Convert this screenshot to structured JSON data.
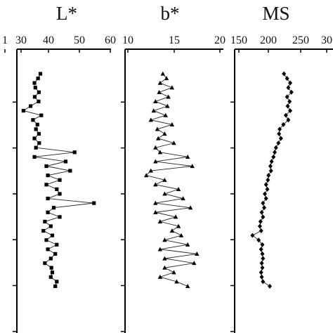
{
  "chart_data": [
    {
      "type": "line",
      "title": "L*",
      "xlabel": "",
      "ylabel": "",
      "x_ticks": [
        "1",
        "30",
        "40",
        "50",
        "60"
      ],
      "xlim": [
        30,
        60
      ],
      "grid": false,
      "marker": "square",
      "series": [
        {
          "points": [
            [
              36.5,
              1.0
            ],
            [
              35.7,
              1.5
            ],
            [
              34.5,
              2.0
            ],
            [
              34.8,
              2.5
            ],
            [
              36.0,
              3.0
            ],
            [
              34.6,
              3.5
            ],
            [
              35.9,
              4.0
            ],
            [
              33.2,
              4.5
            ],
            [
              30.8,
              5.0
            ],
            [
              36.8,
              5.5
            ],
            [
              34.0,
              6.0
            ],
            [
              35.5,
              6.5
            ],
            [
              35.0,
              7.0
            ],
            [
              36.0,
              7.5
            ],
            [
              34.5,
              8.0
            ],
            [
              36.1,
              8.5
            ],
            [
              35.0,
              9.0
            ],
            [
              48.0,
              9.5
            ],
            [
              34.5,
              10.0
            ],
            [
              45.0,
              10.5
            ],
            [
              38.5,
              11.0
            ],
            [
              46.5,
              11.5
            ],
            [
              39.0,
              12.0
            ],
            [
              43.0,
              12.5
            ],
            [
              38.5,
              13.0
            ],
            [
              42.0,
              13.5
            ],
            [
              43.0,
              14.0
            ],
            [
              39.0,
              14.5
            ],
            [
              54.5,
              15.0
            ],
            [
              41.0,
              15.5
            ],
            [
              39.0,
              16.0
            ],
            [
              43.0,
              16.5
            ],
            [
              38.0,
              17.0
            ],
            [
              40.0,
              17.5
            ],
            [
              37.5,
              18.0
            ],
            [
              40.5,
              18.5
            ],
            [
              38.5,
              19.0
            ],
            [
              42.0,
              19.5
            ],
            [
              39.0,
              20.0
            ],
            [
              41.5,
              20.5
            ],
            [
              40.0,
              21.0
            ],
            [
              38.0,
              21.5
            ],
            [
              40.2,
              22.0
            ],
            [
              40.5,
              22.5
            ],
            [
              40.0,
              23.0
            ],
            [
              42.0,
              23.5
            ],
            [
              41.5,
              24.0
            ]
          ]
        }
      ]
    },
    {
      "type": "line",
      "title": "b*",
      "xlabel": "",
      "ylabel": "",
      "x_ticks": [
        "10",
        "15",
        "20"
      ],
      "xlim": [
        10,
        20
      ],
      "grid": false,
      "marker": "triangle",
      "series": [
        {
          "points": [
            [
              13.8,
              1.0
            ],
            [
              14.2,
              1.5
            ],
            [
              13.5,
              2.0
            ],
            [
              14.8,
              2.5
            ],
            [
              13.4,
              3.0
            ],
            [
              14.4,
              3.5
            ],
            [
              13.0,
              4.0
            ],
            [
              14.3,
              4.5
            ],
            [
              12.8,
              5.0
            ],
            [
              14.1,
              5.5
            ],
            [
              12.5,
              6.0
            ],
            [
              14.8,
              6.5
            ],
            [
              13.2,
              7.0
            ],
            [
              14.0,
              7.5
            ],
            [
              13.3,
              8.0
            ],
            [
              15.0,
              8.5
            ],
            [
              13.0,
              9.0
            ],
            [
              13.5,
              9.5
            ],
            [
              16.5,
              10.0
            ],
            [
              13.0,
              10.5
            ],
            [
              17.0,
              11.0
            ],
            [
              12.5,
              11.5
            ],
            [
              12.0,
              12.0
            ],
            [
              14.0,
              12.5
            ],
            [
              13.0,
              13.0
            ],
            [
              15.5,
              13.5
            ],
            [
              14.0,
              14.0
            ],
            [
              16.0,
              14.5
            ],
            [
              13.0,
              15.0
            ],
            [
              16.8,
              15.5
            ],
            [
              13.0,
              16.0
            ],
            [
              15.2,
              16.5
            ],
            [
              13.5,
              17.0
            ],
            [
              15.5,
              17.5
            ],
            [
              14.8,
              18.0
            ],
            [
              15.8,
              18.5
            ],
            [
              14.0,
              19.0
            ],
            [
              16.5,
              19.5
            ],
            [
              13.5,
              20.0
            ],
            [
              17.5,
              20.5
            ],
            [
              14.0,
              21.0
            ],
            [
              17.2,
              21.5
            ],
            [
              14.0,
              22.0
            ],
            [
              15.0,
              22.5
            ],
            [
              13.5,
              23.0
            ],
            [
              15.3,
              23.5
            ],
            [
              16.5,
              24.0
            ]
          ]
        }
      ]
    },
    {
      "type": "line",
      "title": "MS",
      "xlabel": "",
      "ylabel": "",
      "x_ticks": [
        "150",
        "200",
        "250",
        "30"
      ],
      "xlim": [
        150,
        300
      ],
      "grid": false,
      "marker": "diamond",
      "series": [
        {
          "points": [
            [
              223,
              1.0
            ],
            [
              228,
              1.5
            ],
            [
              233,
              2.0
            ],
            [
              230,
              2.5
            ],
            [
              235,
              3.0
            ],
            [
              228,
              3.5
            ],
            [
              232,
              4.0
            ],
            [
              229,
              4.5
            ],
            [
              233,
              5.0
            ],
            [
              226,
              5.5
            ],
            [
              230,
              6.0
            ],
            [
              222,
              6.5
            ],
            [
              216,
              7.0
            ],
            [
              215,
              7.5
            ],
            [
              218,
              8.0
            ],
            [
              214,
              8.5
            ],
            [
              210,
              9.0
            ],
            [
              208,
              9.5
            ],
            [
              206,
              10.0
            ],
            [
              203,
              10.5
            ],
            [
              201,
              11.0
            ],
            [
              202,
              11.5
            ],
            [
              198,
              12.0
            ],
            [
              197,
              12.5
            ],
            [
              194,
              13.0
            ],
            [
              196,
              13.5
            ],
            [
              192,
              14.0
            ],
            [
              194,
              14.5
            ],
            [
              189,
              15.0
            ],
            [
              191,
              15.5
            ],
            [
              187,
              16.0
            ],
            [
              189,
              16.5
            ],
            [
              185,
              17.0
            ],
            [
              184,
              17.5
            ],
            [
              186,
              18.0
            ],
            [
              172,
              18.5
            ],
            [
              182,
              19.0
            ],
            [
              188,
              19.5
            ],
            [
              186,
              20.0
            ],
            [
              188,
              20.5
            ],
            [
              189,
              21.0
            ],
            [
              187,
              21.5
            ],
            [
              188,
              22.0
            ],
            [
              186,
              22.5
            ],
            [
              187,
              23.0
            ],
            [
              189,
              23.5
            ],
            [
              200,
              24.0
            ]
          ]
        }
      ]
    }
  ]
}
